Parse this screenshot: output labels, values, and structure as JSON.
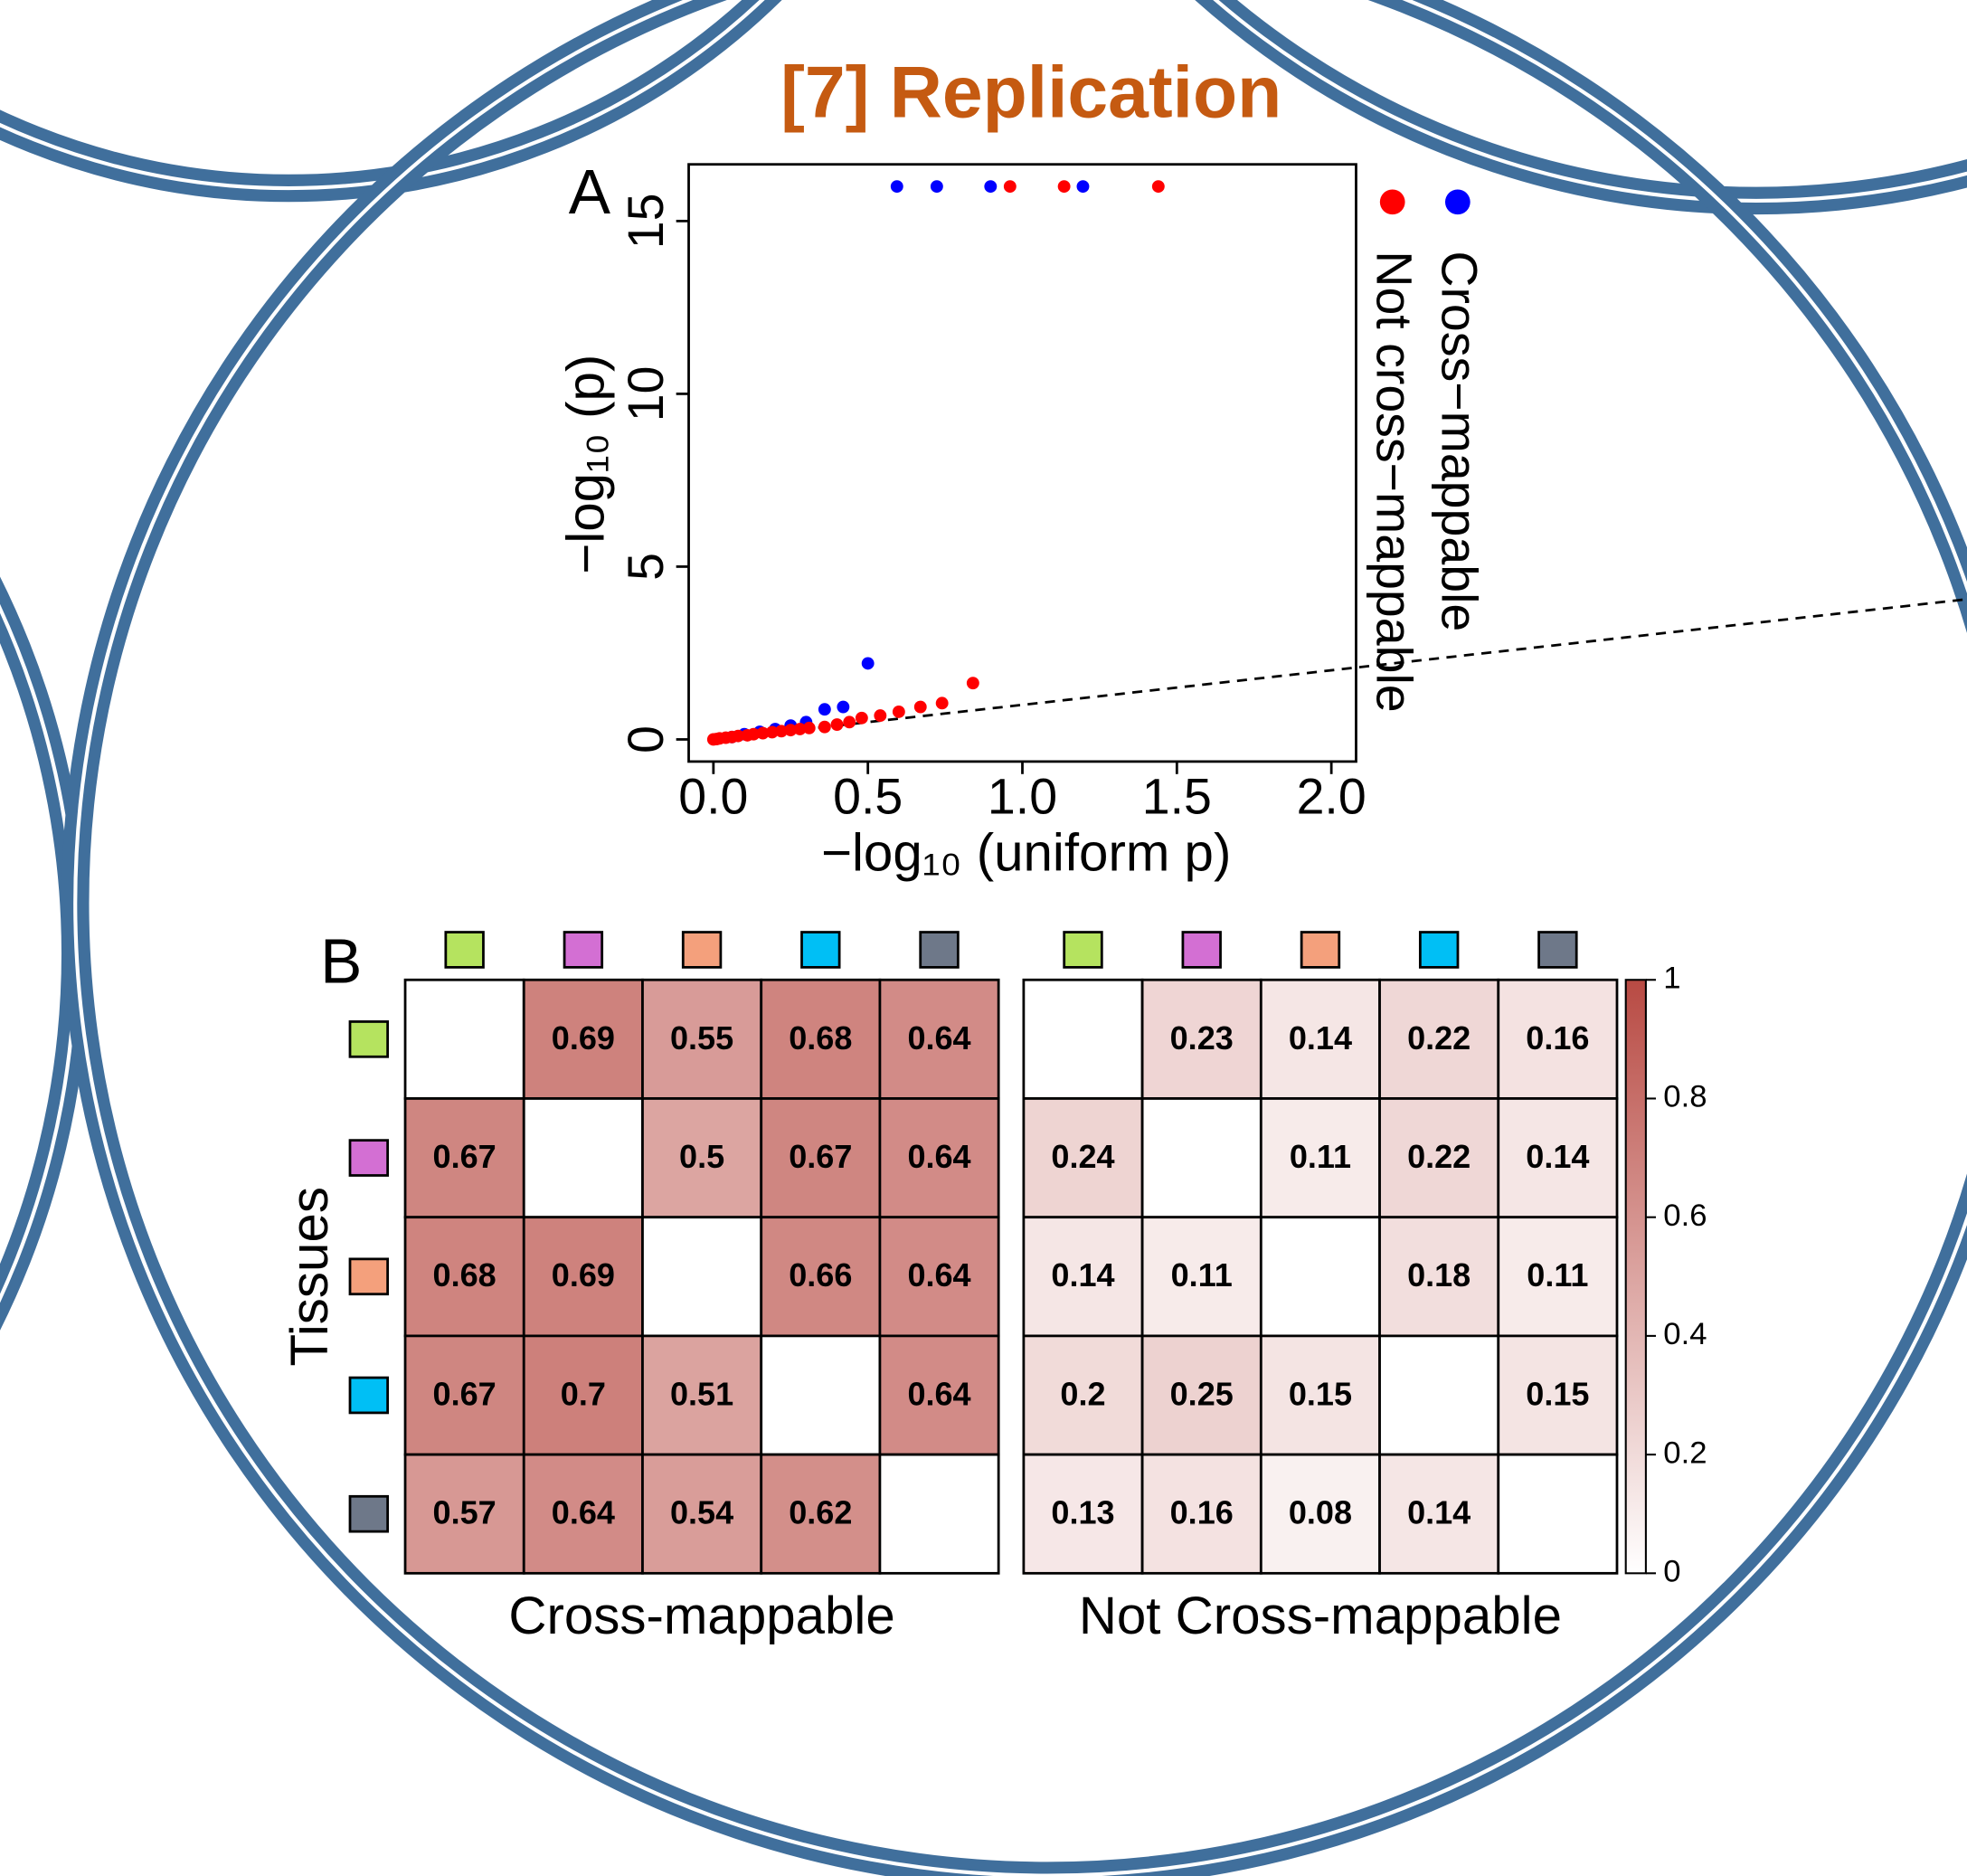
{
  "title": "[7] Replication",
  "panels": [
    "A",
    "B"
  ],
  "chart_data": [
    {
      "type": "scatter",
      "xlabel": "−log₁₀ (uniform p)",
      "ylabel": "−log₁₀ (p)",
      "xlim": [
        -0.08,
        2.08
      ],
      "ylim": [
        -0.64,
        16.64
      ],
      "xticks": [
        {
          "value": 0,
          "label": "0.0"
        },
        {
          "value": 0.5,
          "label": "0.5"
        },
        {
          "value": 1,
          "label": "1.0"
        },
        {
          "value": 1.5,
          "label": "1.5"
        },
        {
          "value": 2,
          "label": "2.0"
        }
      ],
      "yticks": [
        0,
        5,
        10,
        15
      ],
      "series": [
        {
          "name": "Cross−mappable",
          "color": "#0000ff",
          "x": [
            0.594,
            0.723,
            0.897,
            1.196,
            0.5,
            0.42,
            0.36,
            0.3,
            0.25,
            0.2,
            0.15,
            0.1,
            0.06
          ],
          "values": [
            16,
            16,
            16,
            16,
            2.2,
            0.94,
            0.87,
            0.5,
            0.4,
            0.3,
            0.22,
            0.15,
            0.07
          ]
        },
        {
          "name": "Not cross−mappable",
          "color": "#ff0000",
          "x": [
            0.96,
            1.135,
            1.44,
            0.84,
            0.74,
            0.67,
            0.6,
            0.54,
            0.48,
            0.44,
            0.4,
            0.36,
            0.31,
            0.28,
            0.25,
            0.22,
            0.19,
            0.16,
            0.13,
            0.11,
            0.08,
            0.06,
            0.04,
            0.02,
            0.01,
            0
          ],
          "values": [
            16,
            16,
            16,
            1.63,
            1.05,
            0.94,
            0.8,
            0.69,
            0.62,
            0.5,
            0.43,
            0.36,
            0.33,
            0.3,
            0.27,
            0.24,
            0.21,
            0.18,
            0.15,
            0.12,
            0.1,
            0.07,
            0.05,
            0.03,
            0.01,
            0
          ]
        }
      ]
    },
    {
      "type": "heatmap",
      "xlabel": "Cross-mappable",
      "ylabel": "Tissues",
      "categories": [
        null,
        null,
        null,
        null,
        null
      ],
      "category_colors": [
        "#b5e35f",
        "#d36fd3",
        "#f4a07c",
        "#00bff5",
        "#6e7889"
      ],
      "colorscale": [
        "#ffffff",
        "#b84a43"
      ],
      "zlim": [
        0,
        1
      ],
      "values": [
        [
          null,
          0.69,
          0.55,
          0.68,
          0.64
        ],
        [
          0.67,
          null,
          0.5,
          0.67,
          0.64
        ],
        [
          0.68,
          0.69,
          null,
          0.66,
          0.64
        ],
        [
          0.67,
          0.7,
          0.51,
          null,
          0.64
        ],
        [
          0.57,
          0.64,
          0.54,
          0.62,
          null
        ]
      ]
    },
    {
      "type": "heatmap",
      "xlabel": "Not Cross-mappable",
      "categories": [
        null,
        null,
        null,
        null,
        null
      ],
      "category_colors": [
        "#b5e35f",
        "#d36fd3",
        "#f4a07c",
        "#00bff5",
        "#6e7889"
      ],
      "colorscale": [
        "#ffffff",
        "#b84a43"
      ],
      "zlim": [
        0,
        1
      ],
      "colorbar_ticks": [
        0,
        0.2,
        0.4,
        0.6,
        0.8,
        1
      ],
      "values": [
        [
          null,
          0.23,
          0.14,
          0.22,
          0.16
        ],
        [
          0.24,
          null,
          0.11,
          0.22,
          0.14
        ],
        [
          0.14,
          0.11,
          null,
          0.18,
          0.11
        ],
        [
          0.2,
          0.25,
          0.15,
          null,
          0.15
        ],
        [
          0.13,
          0.16,
          0.08,
          0.14,
          null
        ]
      ]
    }
  ]
}
